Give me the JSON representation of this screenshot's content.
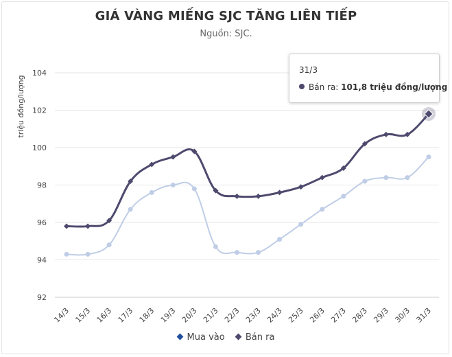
{
  "title": "GIÁ VÀNG MIẾNG SJC TĂNG LIÊN TIẾP",
  "subtitle": "Nguồn: SJC.",
  "colors": {
    "mua_vao": "#bfcde6",
    "ban_ra": "#4e4a6e",
    "legend_mua_vao": "#1f4e9c"
  },
  "tooltip": {
    "date": "31/3",
    "label": "Bán ra: ",
    "value": "101,8 triệu đồng/lượng"
  },
  "legend": {
    "mua_vao": "Mua vào",
    "ban_ra": "Bán ra"
  },
  "chart_data": {
    "type": "line",
    "categories": [
      "14/3",
      "15/3",
      "16/3",
      "17/3",
      "18/3",
      "19/3",
      "20/3",
      "21/3",
      "22/3",
      "23/3",
      "24/3",
      "25/3",
      "26/3",
      "27/3",
      "28/3",
      "29/3",
      "30/3",
      "31/3"
    ],
    "series": [
      {
        "name": "Mua vào",
        "values": [
          94.3,
          94.3,
          94.8,
          96.7,
          97.6,
          98.0,
          97.8,
          94.7,
          94.4,
          94.4,
          95.1,
          95.9,
          96.7,
          97.4,
          98.2,
          98.4,
          98.4,
          99.5
        ]
      },
      {
        "name": "Bán ra",
        "values": [
          95.8,
          95.8,
          96.1,
          98.2,
          99.1,
          99.5,
          99.8,
          97.7,
          97.4,
          97.4,
          97.6,
          97.9,
          98.4,
          98.9,
          100.2,
          100.7,
          100.7,
          101.8
        ]
      }
    ],
    "ylabel": "triệu đồng/lượng",
    "ylim": [
      92,
      104
    ],
    "yticks": [
      "92",
      "94",
      "96",
      "98",
      "100",
      "102",
      "104"
    ],
    "grid": true,
    "legend_position": "bottom"
  }
}
